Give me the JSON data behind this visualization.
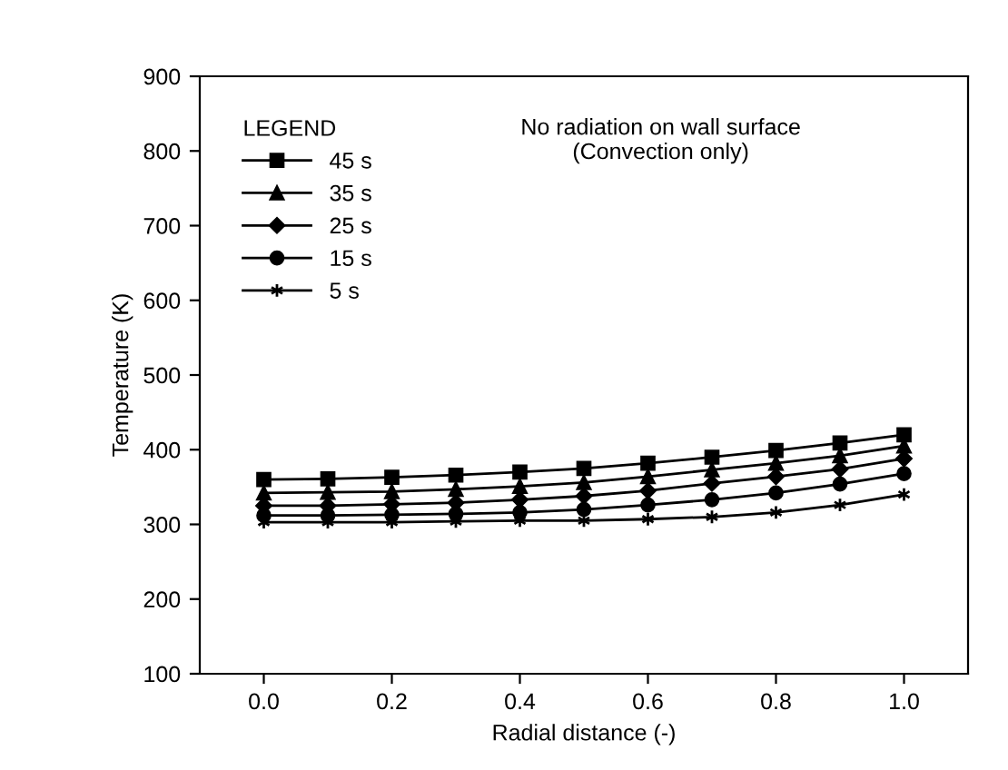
{
  "chart_data": {
    "type": "line",
    "xlabel": "Radial distance (-)",
    "ylabel": "Temperature (K)",
    "legend_title": "LEGEND",
    "annotations": [
      "No radiation on wall surface\n(Convection only)"
    ],
    "x": [
      0.0,
      0.1,
      0.2,
      0.3,
      0.4,
      0.5,
      0.6,
      0.7,
      0.8,
      0.9,
      1.0
    ],
    "series": [
      {
        "name": "45 s",
        "color": "#000000",
        "marker": "square",
        "values": [
          360,
          361,
          363,
          366,
          370,
          375,
          382,
          390,
          399,
          409,
          420
        ]
      },
      {
        "name": "35 s",
        "color": "#000000",
        "marker": "triangle",
        "values": [
          342,
          343,
          344,
          347,
          351,
          356,
          364,
          373,
          382,
          392,
          405
        ]
      },
      {
        "name": "25 s",
        "color": "#000000",
        "marker": "diamond",
        "values": [
          325,
          325,
          327,
          329,
          333,
          338,
          345,
          355,
          364,
          374,
          388
        ]
      },
      {
        "name": "15 s",
        "color": "#000000",
        "marker": "circle",
        "values": [
          312,
          312,
          313,
          314,
          316,
          320,
          326,
          333,
          342,
          354,
          368
        ]
      },
      {
        "name": "5 s",
        "color": "#000000",
        "marker": "cross",
        "values": [
          303,
          303,
          303,
          304,
          305,
          305,
          307,
          310,
          316,
          326,
          340
        ]
      }
    ],
    "xlim": [
      -0.1,
      1.1
    ],
    "xticks": [
      {
        "value": 0.0,
        "label": "0.0"
      },
      {
        "value": 0.2,
        "label": "0.2"
      },
      {
        "value": 0.4,
        "label": "0.4"
      },
      {
        "value": 0.6,
        "label": "0.6"
      },
      {
        "value": 0.8,
        "label": "0.8"
      },
      {
        "value": 1.0,
        "label": "1.0"
      }
    ],
    "ylim": [
      100,
      900
    ],
    "yticks": [
      100,
      200,
      300,
      400,
      500,
      600,
      700,
      800,
      900
    ],
    "grid": false,
    "legend": "top left",
    "line_style": "solid"
  }
}
